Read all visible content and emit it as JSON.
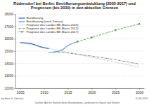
{
  "chart_data": {
    "type": "line",
    "title": "Rüdersdorf bei Berlin: Bevölkerungsentwicklung (2005-2017) und Prognosen (bis 2030) in den aktuellen Grenzen",
    "xlim": [
      2004,
      2031
    ],
    "xticks": [
      2005,
      2010,
      2015,
      2020,
      2025,
      2030
    ],
    "ylim": [
      12000,
      18000
    ],
    "yticks": [
      12000,
      13000,
      14000,
      15000,
      16000,
      17000,
      18000
    ],
    "grid": true,
    "legend": "upper-left",
    "series": [
      {
        "name": "Bevölkerung",
        "color": "#1f5fbf",
        "line_style": "solid",
        "x": [
          2005,
          2006,
          2007,
          2008,
          2009,
          2010,
          2011
        ],
        "values": [
          15690,
          15660,
          15627,
          15521,
          15378,
          15274,
          15202
        ]
      },
      {
        "name": "Bevölkerung (nach Zensus)",
        "color": "#5b9be0",
        "line_style": "solid",
        "x": [
          2011,
          2012,
          2013,
          2014,
          2015,
          2016,
          2017
        ],
        "values": [
          14874,
          14929,
          14977,
          15134,
          15458,
          15620,
          15763
        ]
      },
      {
        "name": "Prognose des Landes BB (Basis 2005)",
        "color": "#9a9a9a",
        "line_style": "dotted",
        "x": [
          2005,
          2010,
          2015,
          2020,
          2025,
          2030
        ],
        "values": [
          15690,
          15300,
          14900,
          14500,
          14100,
          13700
        ]
      },
      {
        "name": "Prognose des Landes BB (Basis 2012)",
        "color": "#6e6e6e",
        "line_style": "dashdot",
        "x": [
          2012,
          2015,
          2020,
          2025,
          2030
        ],
        "values": [
          14929,
          14850,
          14600,
          14300,
          13950
        ]
      },
      {
        "name": "Prognose des Landes BB (Basis 2017)",
        "color": "#3a9a3a",
        "line_style": "dashed",
        "marker": "circle",
        "x": [
          2017,
          2020,
          2025,
          2030
        ],
        "values": [
          15763,
          16100,
          16700,
          17200
        ]
      }
    ],
    "annotations": [
      "by Hans G. Oberlack",
      "Quellen: Amt für Statistik Berlin-Brandenburg, Landesamt für Bauen und Verkehr",
      "01.08.2019"
    ]
  }
}
